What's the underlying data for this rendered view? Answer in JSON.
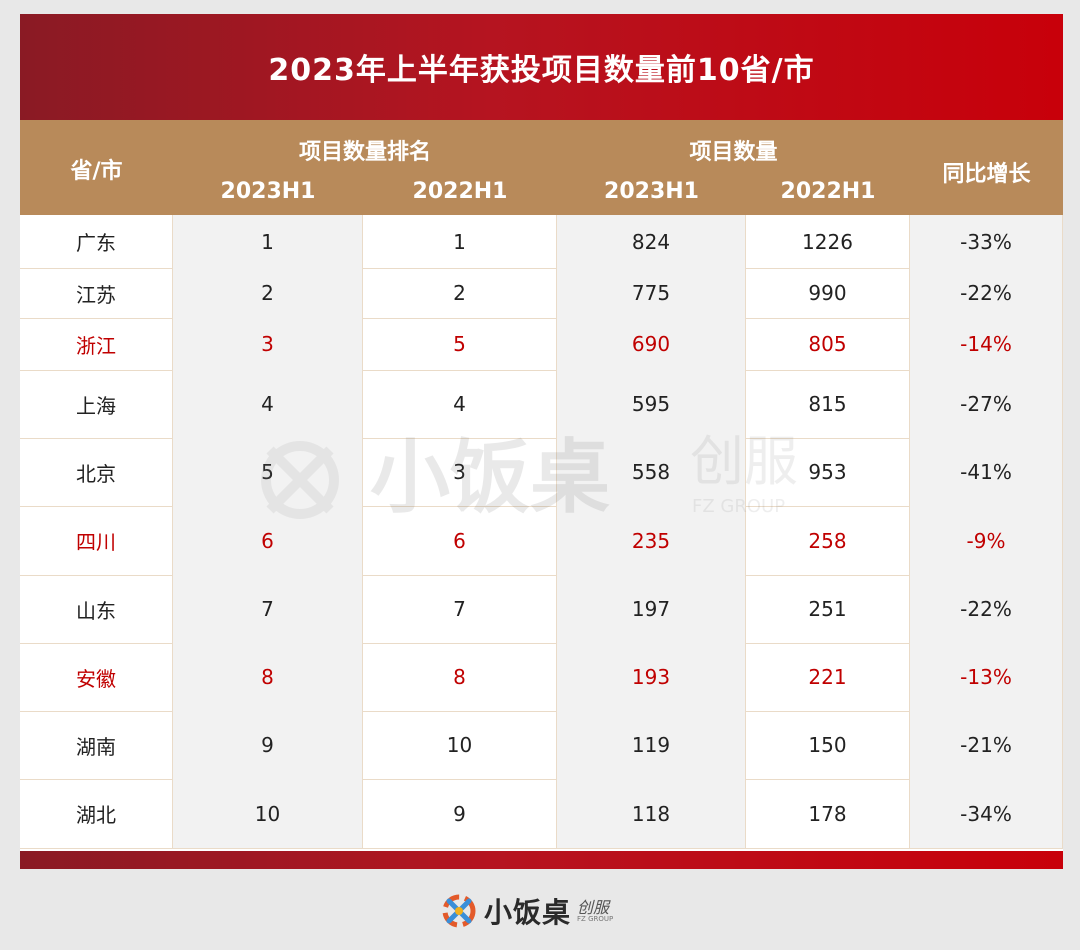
{
  "chart_data": {
    "type": "table",
    "title": "2023年上半年获投项目数量前10省/市",
    "header": {
      "province": "省/市",
      "rank_group": "项目数量排名",
      "count_group": "项目数量",
      "growth": "同比增长",
      "h2023": "2023H1",
      "h2022": "2022H1"
    },
    "rows": [
      {
        "province": "广东",
        "rank_2023": "1",
        "rank_2022": "1",
        "count_2023": "824",
        "count_2022": "1226",
        "growth": "-33%",
        "highlight": false
      },
      {
        "province": "江苏",
        "rank_2023": "2",
        "rank_2022": "2",
        "count_2023": "775",
        "count_2022": "990",
        "growth": "-22%",
        "highlight": false
      },
      {
        "province": "浙江",
        "rank_2023": "3",
        "rank_2022": "5",
        "count_2023": "690",
        "count_2022": "805",
        "growth": "-14%",
        "highlight": true
      },
      {
        "province": "上海",
        "rank_2023": "4",
        "rank_2022": "4",
        "count_2023": "595",
        "count_2022": "815",
        "growth": "-27%",
        "highlight": false
      },
      {
        "province": "北京",
        "rank_2023": "5",
        "rank_2022": "3",
        "count_2023": "558",
        "count_2022": "953",
        "growth": "-41%",
        "highlight": false
      },
      {
        "province": "四川",
        "rank_2023": "6",
        "rank_2022": "6",
        "count_2023": "235",
        "count_2022": "258",
        "growth": "-9%",
        "highlight": true
      },
      {
        "province": "山东",
        "rank_2023": "7",
        "rank_2022": "7",
        "count_2023": "197",
        "count_2022": "251",
        "growth": "-22%",
        "highlight": false
      },
      {
        "province": "安徽",
        "rank_2023": "8",
        "rank_2022": "8",
        "count_2023": "193",
        "count_2022": "221",
        "growth": "-13%",
        "highlight": true
      },
      {
        "province": "湖南",
        "rank_2023": "9",
        "rank_2022": "10",
        "count_2023": "119",
        "count_2022": "150",
        "growth": "-21%",
        "highlight": false
      },
      {
        "province": "湖北",
        "rank_2023": "10",
        "rank_2022": "9",
        "count_2023": "118",
        "count_2022": "178",
        "growth": "-34%",
        "highlight": false
      }
    ]
  },
  "brand": {
    "name": "小饭桌",
    "sub": "创服",
    "en": "FZ GROUP"
  },
  "colors": {
    "title_red": "#c8000a",
    "header_tan": "#b88a5a",
    "highlight_text": "#c00000"
  }
}
